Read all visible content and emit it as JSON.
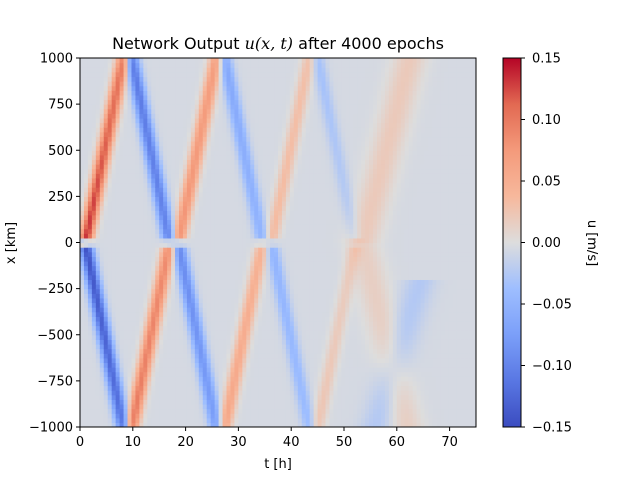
{
  "chart_data": {
    "type": "heatmap",
    "title_prefix": "Network Output ",
    "title_math": "u(x, t)",
    "title_suffix": " after 4000 epochs",
    "xlabel": "t [h]",
    "ylabel": "x [km]",
    "xlim": [
      0,
      75
    ],
    "ylim": [
      -1000,
      1000
    ],
    "xticks": [
      0,
      10,
      20,
      30,
      40,
      50,
      60,
      70
    ],
    "yticks": [
      1000,
      750,
      500,
      250,
      0,
      -250,
      -500,
      -750,
      -1000
    ],
    "colorbar": {
      "label": "u [m/s]",
      "range": [
        -0.15,
        0.15
      ],
      "ticks": [
        "0.15",
        "0.10",
        "0.05",
        "0.00",
        "−0.05",
        "−0.10",
        "−0.15"
      ],
      "colormap": "coolwarm"
    },
    "background_value": -0.005,
    "wave_fronts": [
      {
        "name": "A1",
        "x_start": 0,
        "x_end": 1000,
        "t_start": 1.0,
        "t_end": 8.2,
        "amp_start": 0.14,
        "amp_end": 0.105
      },
      {
        "name": "A2",
        "x_start": 1000,
        "x_end": 0,
        "t_start": 9.8,
        "t_end": 17.0,
        "amp_start": -0.105,
        "amp_end": -0.095
      },
      {
        "name": "A3",
        "x_start": 0,
        "x_end": 1000,
        "t_start": 18.6,
        "t_end": 25.8,
        "amp_start": 0.085,
        "amp_end": 0.075
      },
      {
        "name": "A4",
        "x_start": 1000,
        "x_end": 0,
        "t_start": 27.4,
        "t_end": 34.6,
        "amp_start": -0.06,
        "amp_end": -0.045
      },
      {
        "name": "A5",
        "x_start": 0,
        "x_end": 1000,
        "t_start": 36.2,
        "t_end": 43.4,
        "amp_start": 0.04,
        "amp_end": 0.035
      },
      {
        "name": "A6",
        "x_start": 1000,
        "x_end": 0,
        "t_start": 45.0,
        "t_end": 52.2,
        "amp_start": -0.03,
        "amp_end": -0.015
      },
      {
        "name": "B1",
        "x_start": 0,
        "x_end": -1000,
        "t_start": 1.0,
        "t_end": 8.2,
        "amp_start": -0.14,
        "amp_end": -0.11
      },
      {
        "name": "B2",
        "x_start": -1000,
        "x_end": 0,
        "t_start": 9.8,
        "t_end": 17.0,
        "amp_start": 0.105,
        "amp_end": 0.09
      },
      {
        "name": "B3",
        "x_start": 0,
        "x_end": -1000,
        "t_start": 18.6,
        "t_end": 25.8,
        "amp_start": -0.09,
        "amp_end": -0.07
      },
      {
        "name": "B4",
        "x_start": -1000,
        "x_end": 0,
        "t_start": 27.4,
        "t_end": 34.6,
        "amp_start": 0.065,
        "amp_end": 0.05
      },
      {
        "name": "B5",
        "x_start": 0,
        "x_end": -1000,
        "t_start": 36.2,
        "t_end": 43.4,
        "amp_start": -0.045,
        "amp_end": -0.035
      },
      {
        "name": "B6",
        "x_start": -1000,
        "x_end": 0,
        "t_start": 45.0,
        "t_end": 52.2,
        "amp_start": 0.03,
        "amp_end": 0.02
      }
    ],
    "diffuse_regions": [
      {
        "name": "upper-late",
        "x_start": 0,
        "x_end": 1000,
        "t_start": 53.5,
        "t_end": 62.5,
        "amp": 0.025
      },
      {
        "name": "lower-late-red",
        "x_start": 0,
        "x_end": -1000,
        "t_start": 53.5,
        "t_end": 62.0,
        "amp": 0.02
      },
      {
        "name": "lower-late-blue",
        "x_start": -1000,
        "x_end": -200,
        "t_start": 56.0,
        "t_end": 64.5,
        "amp": -0.02
      }
    ]
  }
}
